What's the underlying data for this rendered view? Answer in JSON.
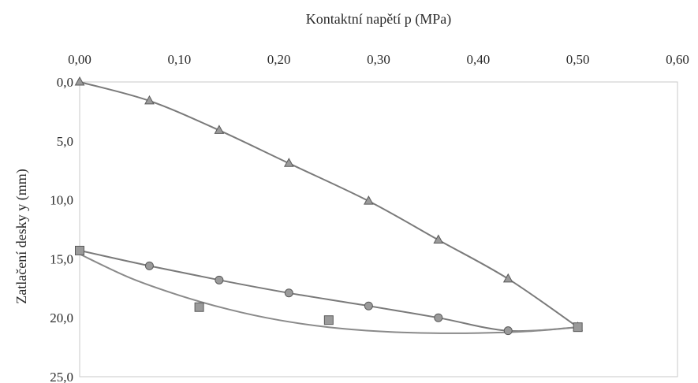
{
  "chart_data": {
    "type": "scatter",
    "title": "",
    "xlabel": "Kontaktní napětí p  (MPa)",
    "ylabel": "Zatlačení desky y  (mm)",
    "x_axis_position": "top",
    "y_axis_inverted": true,
    "xlim": [
      0,
      0.6
    ],
    "ylim": [
      0,
      25
    ],
    "xticks": [
      "0,00",
      "0,10",
      "0,20",
      "0,30",
      "0,40",
      "0,50",
      "0,60"
    ],
    "yticks": [
      "0,0",
      "5,0",
      "10,0",
      "15,0",
      "20,0",
      "25,0"
    ],
    "grid": false,
    "legend": "none",
    "series": [
      {
        "marker": "triangle",
        "color": "#7a7a7a",
        "line": "smooth",
        "points": [
          {
            "x": 0.0,
            "y": 0.0
          },
          {
            "x": 0.07,
            "y": 1.6
          },
          {
            "x": 0.14,
            "y": 4.1
          },
          {
            "x": 0.21,
            "y": 6.9
          },
          {
            "x": 0.29,
            "y": 10.1
          },
          {
            "x": 0.36,
            "y": 13.4
          },
          {
            "x": 0.43,
            "y": 16.7
          },
          {
            "x": 0.5,
            "y": 20.8
          }
        ]
      },
      {
        "marker": "circle",
        "color": "#7a7a7a",
        "line": "smooth",
        "points": [
          {
            "x": 0.0,
            "y": 14.3
          },
          {
            "x": 0.07,
            "y": 15.6
          },
          {
            "x": 0.14,
            "y": 16.8
          },
          {
            "x": 0.21,
            "y": 17.9
          },
          {
            "x": 0.29,
            "y": 19.0
          },
          {
            "x": 0.36,
            "y": 20.0
          },
          {
            "x": 0.43,
            "y": 21.1
          },
          {
            "x": 0.5,
            "y": 20.8
          }
        ]
      },
      {
        "marker": "square",
        "color": "#8a8a8a",
        "line": "fitted-curve",
        "points": [
          {
            "x": 0.0,
            "y": 14.3
          },
          {
            "x": 0.12,
            "y": 19.1
          },
          {
            "x": 0.25,
            "y": 20.2
          },
          {
            "x": 0.5,
            "y": 20.8
          }
        ],
        "fit_curve": [
          {
            "x": 0.0,
            "y": 14.6
          },
          {
            "x": 0.05,
            "y": 16.6
          },
          {
            "x": 0.1,
            "y": 18.1
          },
          {
            "x": 0.15,
            "y": 19.3
          },
          {
            "x": 0.2,
            "y": 20.2
          },
          {
            "x": 0.25,
            "y": 20.8
          },
          {
            "x": 0.3,
            "y": 21.15
          },
          {
            "x": 0.35,
            "y": 21.3
          },
          {
            "x": 0.4,
            "y": 21.3
          },
          {
            "x": 0.45,
            "y": 21.15
          },
          {
            "x": 0.5,
            "y": 20.8
          }
        ]
      }
    ]
  }
}
